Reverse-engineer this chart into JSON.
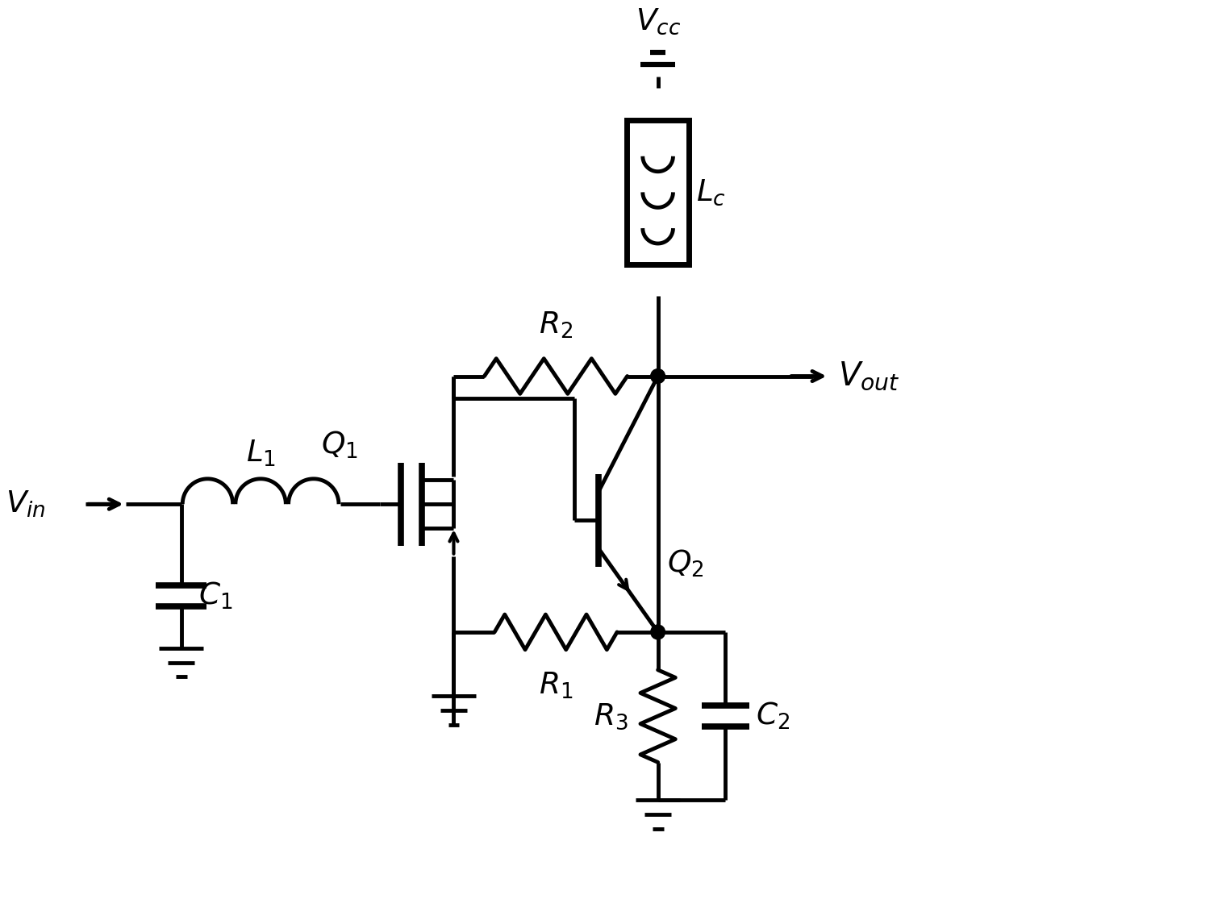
{
  "bg_color": "#ffffff",
  "line_color": "#000000",
  "lw": 3.5,
  "fig_width": 15.15,
  "fig_height": 11.41,
  "dpi": 100,
  "xlim": [
    0,
    15.15
  ],
  "ylim": [
    0,
    11.41
  ]
}
